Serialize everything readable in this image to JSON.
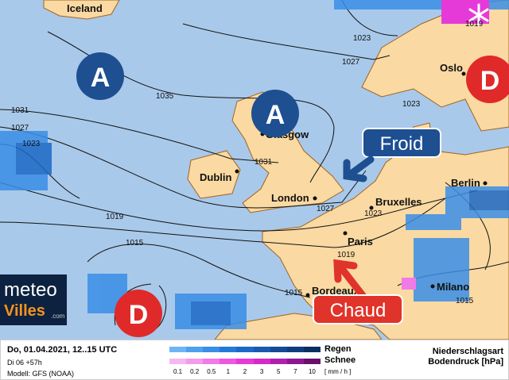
{
  "map": {
    "colors": {
      "sea": "#a9c9ea",
      "land": "#fad9a3",
      "border": "#a0641e",
      "rain": "#2f7fd8",
      "snow": "#e040e0",
      "high": "#1d4f91",
      "low": "#e02a2a"
    },
    "cities": [
      "Iceland",
      "Glasgow",
      "Dublin",
      "London",
      "Bruxelles",
      "Berlin",
      "Oslo",
      "Paris",
      "Bordeaux",
      "Milano"
    ],
    "isobars": [
      "1023",
      "1027",
      "1035",
      "1031",
      "1027",
      "1023",
      "1031",
      "1027",
      "1023",
      "1019",
      "1015",
      "1019",
      "1015",
      "1015",
      "1023",
      "1019"
    ],
    "pressure_centers": [
      {
        "letter": "A",
        "type": "high"
      },
      {
        "letter": "A",
        "type": "high"
      },
      {
        "letter": "D",
        "type": "low"
      },
      {
        "letter": "D",
        "type": "low"
      }
    ],
    "annotations": {
      "cold": "Froid",
      "warm": "Chaud"
    },
    "snowflake_icon": "snowflake-icon"
  },
  "logo": {
    "line1": "meteo",
    "line2": "Villes",
    "suffix": ".com"
  },
  "legend": {
    "date": "Do, 01.04.2021, 12..15 UTC",
    "run": "Di 06 +57h",
    "model": "Modell: GFS (NOAA)",
    "rain_label": "Regen",
    "snow_label": "Schnee",
    "ticks": [
      "0.1",
      "0.2",
      "0.5",
      "1",
      "2",
      "3",
      "5",
      "7",
      "10"
    ],
    "unit": "[ mm / h ]",
    "title1": "Niederschlagsart",
    "title2": "Bodendruck [hPa]",
    "rain_colors": [
      "#6db5f5",
      "#4fa0ee",
      "#3a8ee6",
      "#2479d8",
      "#1c68c6",
      "#1a59b0",
      "#154a98",
      "#103d80",
      "#0b3060"
    ],
    "snow_colors": [
      "#f7b8f0",
      "#f49cea",
      "#f07ae6",
      "#ec58e0",
      "#e63ad8",
      "#d62ac8",
      "#b020b0",
      "#8c1890",
      "#6a106c"
    ]
  }
}
